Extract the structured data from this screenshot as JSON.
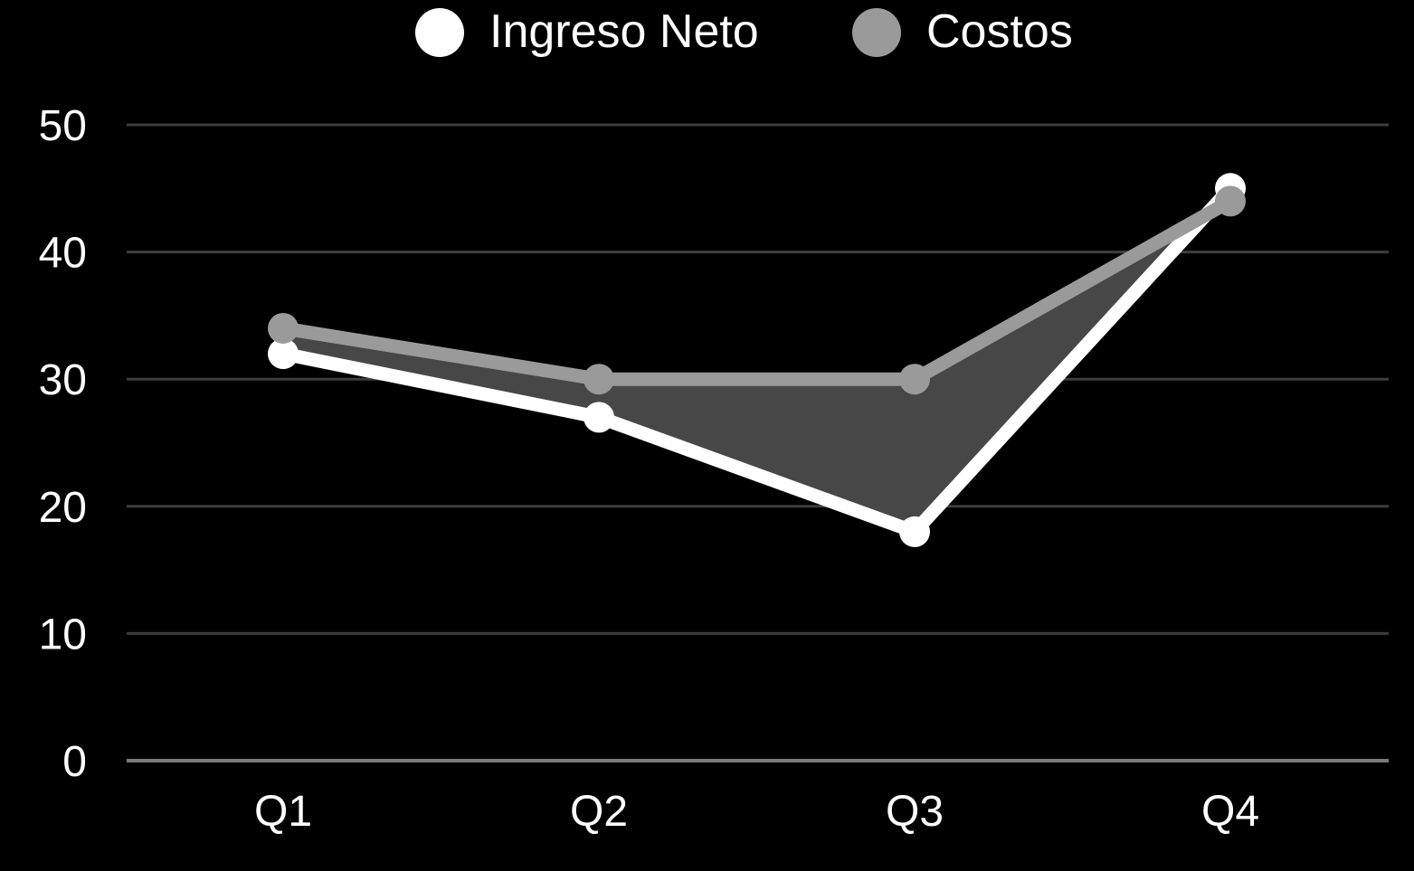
{
  "chart_data": {
    "type": "line",
    "title": "",
    "xlabel": "",
    "ylabel": "",
    "categories": [
      "Q1",
      "Q2",
      "Q3",
      "Q4"
    ],
    "series": [
      {
        "name": "Ingreso Neto",
        "values": [
          32,
          27,
          18,
          45
        ],
        "color": "#ffffff"
      },
      {
        "name": "Costos",
        "values": [
          34,
          30,
          30,
          44
        ],
        "color": "#9a9a9a"
      }
    ],
    "ylim": [
      0,
      50
    ],
    "yticks": [
      "0",
      "10",
      "20",
      "30",
      "40",
      "50"
    ],
    "grid": true,
    "legend_position": "top-center",
    "fill_between_color": "#474747",
    "background": "#000000"
  }
}
